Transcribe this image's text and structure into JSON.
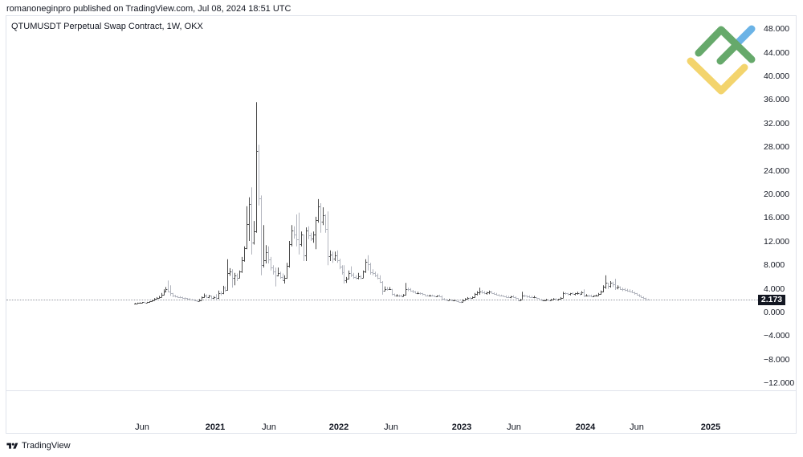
{
  "attribution": "romanoneginpro published on TradingView.com, Jul 08, 2024 18:51 UTC",
  "chart": {
    "title": "QTUMUSDT Perpetual Swap Contract, 1W, OKX",
    "last_price_label": "2.173"
  },
  "price_axis": [
    "48.000",
    "44.000",
    "40.000",
    "36.000",
    "32.000",
    "28.000",
    "24.000",
    "20.000",
    "16.000",
    "12.000",
    "8.000",
    "4.000",
    "0.000",
    "−4.000",
    "−8.000",
    "−12.000"
  ],
  "time_axis": [
    "Jun",
    "2021",
    "Jun",
    "2022",
    "Jun",
    "2023",
    "Jun",
    "2024",
    "Jun",
    "2025"
  ],
  "footer": {
    "brand": "TradingView"
  },
  "logo": {
    "green": "#66a96b",
    "blue": "#6bb3e6",
    "yellow": "#f3d46d"
  },
  "chart_data": {
    "type": "ohlc",
    "title": "QTUMUSDT Perpetual Swap Contract, 1W, OKX",
    "symbol": "QTUMUSDT",
    "interval": "1W",
    "exchange": "OKX",
    "xlabel": "",
    "ylabel": "",
    "x_tick_labels": [
      "Jun",
      "2021",
      "Jun",
      "2022",
      "Jun",
      "2023",
      "Jun",
      "2024",
      "Jun",
      "2025"
    ],
    "y_tick_labels": [
      48,
      44,
      40,
      36,
      32,
      28,
      24,
      20,
      16,
      12,
      8,
      4,
      0,
      -4,
      -8,
      -12
    ],
    "ylim": [
      -13.2,
      50.2
    ],
    "grid": false,
    "legend": "none",
    "last_price": 2.173,
    "colors": {
      "up": "#4a4a4a",
      "down": "#b2b5be",
      "last_price_bg": "#131722"
    },
    "ohlc_fields": [
      "open",
      "high",
      "low",
      "close"
    ],
    "ohlc": [
      [
        1.45,
        1.62,
        1.42,
        1.55
      ],
      [
        1.55,
        1.66,
        1.48,
        1.6
      ],
      [
        1.6,
        1.7,
        1.52,
        1.62
      ],
      [
        1.62,
        1.76,
        1.56,
        1.7
      ],
      [
        1.7,
        1.8,
        1.58,
        1.66
      ],
      [
        1.66,
        1.78,
        1.6,
        1.72
      ],
      [
        1.72,
        1.9,
        1.65,
        1.85
      ],
      [
        1.85,
        2.15,
        1.8,
        2.05
      ],
      [
        2.05,
        2.4,
        2.0,
        2.25
      ],
      [
        2.25,
        2.6,
        2.2,
        2.45
      ],
      [
        2.45,
        2.8,
        2.35,
        2.6
      ],
      [
        2.6,
        3.3,
        2.55,
        2.95
      ],
      [
        2.95,
        3.9,
        2.9,
        3.55
      ],
      [
        3.55,
        4.3,
        3.4,
        3.9
      ],
      [
        3.9,
        5.4,
        3.4,
        3.6
      ],
      [
        3.6,
        4.6,
        2.8,
        3.2
      ],
      [
        3.2,
        3.3,
        2.6,
        2.9
      ],
      [
        2.9,
        2.95,
        2.55,
        2.75
      ],
      [
        2.75,
        2.8,
        2.45,
        2.65
      ],
      [
        2.65,
        2.75,
        2.4,
        2.6
      ],
      [
        2.6,
        2.65,
        2.35,
        2.5
      ],
      [
        2.5,
        2.55,
        2.25,
        2.4
      ],
      [
        2.4,
        2.45,
        2.15,
        2.35
      ],
      [
        2.35,
        2.4,
        2.1,
        2.2
      ],
      [
        2.2,
        2.3,
        2.0,
        2.15
      ],
      [
        2.15,
        2.2,
        1.9,
        2.05
      ],
      [
        2.05,
        2.1,
        1.8,
        1.95
      ],
      [
        1.95,
        2.25,
        1.9,
        2.1
      ],
      [
        2.1,
        2.7,
        2.05,
        2.55
      ],
      [
        2.55,
        3.2,
        2.45,
        2.9
      ],
      [
        2.9,
        3.05,
        2.4,
        2.55
      ],
      [
        2.55,
        2.95,
        2.4,
        2.8
      ],
      [
        2.8,
        2.85,
        2.3,
        2.5
      ],
      [
        2.5,
        2.75,
        2.3,
        2.6
      ],
      [
        2.6,
        3.1,
        2.2,
        2.4
      ],
      [
        2.4,
        3.7,
        2.3,
        3.3
      ],
      [
        3.3,
        3.6,
        2.9,
        3.2
      ],
      [
        3.2,
        4.5,
        3.1,
        4.2
      ],
      [
        4.2,
        4.4,
        3.5,
        3.8
      ],
      [
        3.8,
        9.0,
        3.7,
        6.6
      ],
      [
        6.6,
        7.5,
        6.2,
        6.9
      ],
      [
        6.9,
        7.3,
        4.2,
        5.8
      ],
      [
        5.8,
        6.7,
        4.6,
        6.3
      ],
      [
        6.3,
        6.6,
        5.3,
        5.9
      ],
      [
        5.9,
        7.1,
        5.8,
        6.9
      ],
      [
        6.9,
        9.4,
        6.7,
        8.8
      ],
      [
        8.8,
        11.2,
        8.6,
        10.9
      ],
      [
        10.9,
        18.0,
        10.7,
        15.0
      ],
      [
        15.0,
        19.5,
        12.1,
        18.4
      ],
      [
        18.4,
        21.2,
        9.8,
        11.8
      ],
      [
        11.8,
        15.5,
        11.5,
        13.8
      ],
      [
        13.8,
        35.6,
        13.5,
        27.3
      ],
      [
        27.3,
        28.4,
        18.1,
        19.3
      ],
      [
        19.3,
        19.8,
        6.3,
        8.0
      ],
      [
        8.0,
        14.8,
        7.6,
        8.8
      ],
      [
        8.8,
        11.4,
        8.3,
        10.2
      ],
      [
        10.2,
        11.2,
        8.3,
        9.0
      ],
      [
        9.0,
        9.4,
        7.1,
        7.6
      ],
      [
        7.6,
        8.0,
        6.4,
        7.0
      ],
      [
        7.0,
        7.6,
        4.4,
        6.3
      ],
      [
        6.3,
        7.6,
        6.1,
        6.6
      ],
      [
        6.6,
        6.9,
        5.7,
        6.0
      ],
      [
        6.0,
        6.6,
        5.3,
        5.5
      ],
      [
        5.5,
        6.3,
        4.9,
        5.8
      ],
      [
        5.8,
        8.4,
        5.7,
        7.9
      ],
      [
        7.9,
        12.1,
        7.6,
        11.5
      ],
      [
        11.5,
        14.8,
        11.2,
        13.9
      ],
      [
        13.9,
        14.6,
        12.5,
        13.2
      ],
      [
        13.2,
        16.6,
        11.2,
        12.4
      ],
      [
        12.4,
        16.9,
        9.8,
        11.5
      ],
      [
        11.5,
        13.7,
        11.2,
        13.2
      ],
      [
        13.2,
        13.2,
        8.7,
        9.6
      ],
      [
        9.6,
        14.4,
        8.7,
        13.9
      ],
      [
        13.9,
        14.6,
        12.4,
        13.0
      ],
      [
        13.0,
        13.5,
        12.1,
        12.5
      ],
      [
        12.5,
        13.7,
        11.8,
        13.2
      ],
      [
        13.2,
        16.2,
        10.7,
        15.6
      ],
      [
        15.6,
        19.2,
        15.2,
        18.0
      ],
      [
        18.0,
        18.5,
        13.5,
        15.4
      ],
      [
        15.4,
        17.8,
        14.8,
        16.5
      ],
      [
        16.5,
        16.6,
        13.5,
        14.2
      ],
      [
        14.2,
        17.1,
        8.0,
        9.5
      ],
      [
        9.5,
        10.5,
        8.7,
        9.8
      ],
      [
        9.8,
        10.3,
        8.4,
        9.1
      ],
      [
        9.1,
        10.3,
        8.7,
        9.6
      ],
      [
        9.6,
        10.5,
        8.4,
        8.9
      ],
      [
        8.9,
        9.1,
        7.3,
        7.8
      ],
      [
        7.8,
        8.0,
        6.4,
        6.8
      ],
      [
        6.8,
        8.0,
        4.9,
        5.4
      ],
      [
        5.4,
        6.0,
        5.0,
        5.7
      ],
      [
        5.7,
        7.1,
        5.6,
        6.7
      ],
      [
        6.7,
        7.8,
        6.0,
        6.4
      ],
      [
        6.4,
        6.7,
        5.7,
        6.0
      ],
      [
        6.0,
        6.3,
        5.6,
        5.9
      ],
      [
        5.9,
        6.7,
        5.6,
        6.1
      ],
      [
        6.1,
        6.3,
        5.6,
        5.8
      ],
      [
        5.8,
        7.1,
        5.8,
        6.9
      ],
      [
        6.9,
        9.0,
        6.7,
        8.6
      ],
      [
        8.6,
        9.7,
        7.1,
        8.2
      ],
      [
        8.2,
        8.4,
        6.4,
        6.8
      ],
      [
        6.8,
        7.3,
        6.3,
        6.6
      ],
      [
        6.6,
        6.9,
        6.0,
        6.3
      ],
      [
        6.3,
        6.6,
        5.6,
        5.9
      ],
      [
        5.9,
        6.3,
        5.0,
        5.2
      ],
      [
        5.2,
        5.3,
        3.0,
        3.7
      ],
      [
        3.7,
        4.4,
        3.6,
        4.0
      ],
      [
        4.0,
        4.3,
        3.7,
        3.9
      ],
      [
        3.9,
        4.3,
        3.8,
        3.9
      ],
      [
        3.9,
        4.0,
        2.9,
        3.1
      ],
      [
        3.1,
        3.2,
        2.7,
        2.9
      ],
      [
        2.9,
        3.1,
        2.7,
        2.9
      ],
      [
        2.9,
        3.0,
        2.6,
        2.8
      ],
      [
        2.8,
        3.0,
        2.6,
        2.75
      ],
      [
        2.75,
        3.1,
        2.7,
        3.0
      ],
      [
        3.0,
        5.0,
        2.9,
        4.0
      ],
      [
        4.0,
        4.2,
        3.6,
        3.9
      ],
      [
        3.9,
        4.1,
        3.5,
        3.7
      ],
      [
        3.7,
        3.8,
        3.3,
        3.5
      ],
      [
        3.5,
        3.6,
        3.2,
        3.3
      ],
      [
        3.3,
        3.5,
        3.1,
        3.3
      ],
      [
        3.3,
        3.4,
        3.0,
        3.2
      ],
      [
        3.2,
        3.3,
        2.9,
        3.1
      ],
      [
        3.1,
        3.1,
        2.8,
        2.9
      ],
      [
        2.9,
        3.0,
        2.7,
        2.85
      ],
      [
        2.85,
        3.0,
        2.7,
        2.9
      ],
      [
        2.9,
        3.0,
        2.7,
        2.8
      ],
      [
        2.8,
        2.9,
        2.6,
        2.75
      ],
      [
        2.75,
        2.9,
        2.6,
        2.8
      ],
      [
        2.8,
        3.0,
        2.6,
        2.7
      ],
      [
        2.7,
        2.9,
        2.2,
        2.3
      ],
      [
        2.3,
        2.4,
        2.1,
        2.2
      ],
      [
        2.2,
        2.3,
        2.0,
        2.1
      ],
      [
        2.1,
        2.3,
        2.0,
        2.15
      ],
      [
        2.15,
        2.2,
        1.9,
        2.0
      ],
      [
        2.0,
        2.2,
        1.9,
        2.05
      ],
      [
        2.05,
        2.1,
        1.9,
        1.95
      ],
      [
        1.95,
        2.0,
        1.7,
        1.8
      ],
      [
        1.8,
        1.9,
        1.6,
        1.75
      ],
      [
        1.75,
        2.2,
        1.7,
        2.1
      ],
      [
        2.1,
        2.4,
        2.0,
        2.3
      ],
      [
        2.3,
        2.6,
        2.2,
        2.5
      ],
      [
        2.5,
        2.6,
        2.3,
        2.4
      ],
      [
        2.4,
        2.7,
        2.3,
        2.6
      ],
      [
        2.6,
        3.3,
        2.5,
        3.1
      ],
      [
        3.1,
        3.6,
        2.9,
        3.4
      ],
      [
        3.4,
        4.2,
        3.0,
        3.5
      ],
      [
        3.5,
        3.8,
        3.2,
        3.4
      ],
      [
        3.4,
        3.6,
        3.1,
        3.3
      ],
      [
        3.3,
        3.5,
        3.0,
        3.4
      ],
      [
        3.4,
        3.7,
        3.1,
        3.5
      ],
      [
        3.5,
        3.6,
        3.2,
        3.3
      ],
      [
        3.3,
        3.4,
        3.0,
        3.1
      ],
      [
        3.1,
        3.3,
        2.9,
        3.0
      ],
      [
        3.0,
        3.1,
        2.8,
        2.9
      ],
      [
        2.9,
        3.0,
        2.7,
        2.8
      ],
      [
        2.8,
        2.9,
        2.6,
        2.7
      ],
      [
        2.7,
        2.9,
        2.5,
        2.65
      ],
      [
        2.65,
        2.8,
        2.5,
        2.6
      ],
      [
        2.6,
        2.8,
        2.4,
        2.7
      ],
      [
        2.7,
        2.9,
        2.5,
        2.6
      ],
      [
        2.6,
        2.7,
        2.3,
        2.4
      ],
      [
        2.4,
        2.4,
        1.9,
        2.1
      ],
      [
        2.1,
        2.3,
        2.0,
        2.2
      ],
      [
        2.2,
        3.5,
        2.2,
        2.9
      ],
      [
        2.9,
        3.0,
        2.6,
        2.8
      ],
      [
        2.8,
        2.9,
        2.5,
        2.7
      ],
      [
        2.7,
        2.9,
        2.5,
        2.65
      ],
      [
        2.65,
        2.8,
        2.5,
        2.6
      ],
      [
        2.6,
        2.8,
        2.4,
        2.6
      ],
      [
        2.6,
        2.6,
        2.3,
        2.4
      ],
      [
        2.4,
        2.4,
        2.1,
        2.2
      ],
      [
        2.2,
        2.3,
        2.0,
        2.1
      ],
      [
        2.1,
        2.2,
        2.0,
        2.1
      ],
      [
        2.1,
        2.3,
        2.0,
        2.15
      ],
      [
        2.15,
        2.2,
        1.95,
        2.05
      ],
      [
        2.05,
        2.3,
        2.0,
        2.2
      ],
      [
        2.2,
        2.4,
        2.1,
        2.3
      ],
      [
        2.3,
        2.4,
        2.1,
        2.2
      ],
      [
        2.2,
        2.3,
        2.0,
        2.25
      ],
      [
        2.25,
        2.6,
        2.2,
        2.5
      ],
      [
        2.5,
        3.5,
        2.4,
        3.3
      ],
      [
        3.3,
        3.4,
        3.0,
        3.2
      ],
      [
        3.2,
        3.3,
        2.9,
        3.1
      ],
      [
        3.1,
        3.3,
        2.9,
        3.2
      ],
      [
        3.2,
        3.4,
        3.0,
        3.1
      ],
      [
        3.1,
        3.3,
        2.9,
        3.2
      ],
      [
        3.2,
        3.5,
        3.0,
        3.3
      ],
      [
        3.3,
        3.4,
        2.9,
        3.1
      ],
      [
        3.1,
        3.6,
        3.0,
        3.4
      ],
      [
        3.4,
        3.9,
        2.6,
        2.9
      ],
      [
        2.9,
        3.1,
        2.7,
        2.9
      ],
      [
        2.9,
        3.0,
        2.6,
        2.8
      ],
      [
        2.8,
        3.0,
        2.6,
        2.75
      ],
      [
        2.75,
        2.9,
        2.6,
        2.8
      ],
      [
        2.8,
        3.0,
        2.7,
        2.9
      ],
      [
        2.9,
        3.3,
        2.8,
        3.1
      ],
      [
        3.1,
        3.7,
        3.0,
        3.5
      ],
      [
        3.5,
        4.6,
        3.4,
        4.3
      ],
      [
        4.3,
        6.3,
        4.0,
        5.0
      ],
      [
        5.0,
        5.0,
        4.0,
        4.5
      ],
      [
        4.5,
        5.3,
        4.2,
        5.0
      ],
      [
        5.0,
        5.2,
        4.3,
        4.7
      ],
      [
        4.7,
        5.7,
        3.8,
        4.2
      ],
      [
        4.2,
        4.6,
        3.9,
        4.3
      ],
      [
        4.3,
        4.4,
        3.8,
        4.0
      ],
      [
        4.0,
        4.2,
        3.6,
        3.9
      ],
      [
        3.9,
        4.1,
        3.6,
        3.8
      ],
      [
        3.8,
        4.0,
        3.5,
        3.7
      ],
      [
        3.7,
        3.9,
        3.4,
        3.6
      ],
      [
        3.6,
        3.8,
        3.3,
        3.4
      ],
      [
        3.4,
        3.5,
        3.0,
        3.2
      ],
      [
        3.2,
        3.3,
        2.9,
        3.0
      ],
      [
        3.0,
        3.1,
        2.6,
        2.8
      ],
      [
        2.8,
        2.9,
        2.5,
        2.6
      ],
      [
        2.6,
        2.7,
        2.3,
        2.4
      ],
      [
        2.4,
        2.5,
        2.0,
        2.2
      ],
      [
        2.2,
        2.3,
        2.1,
        2.173
      ]
    ]
  }
}
